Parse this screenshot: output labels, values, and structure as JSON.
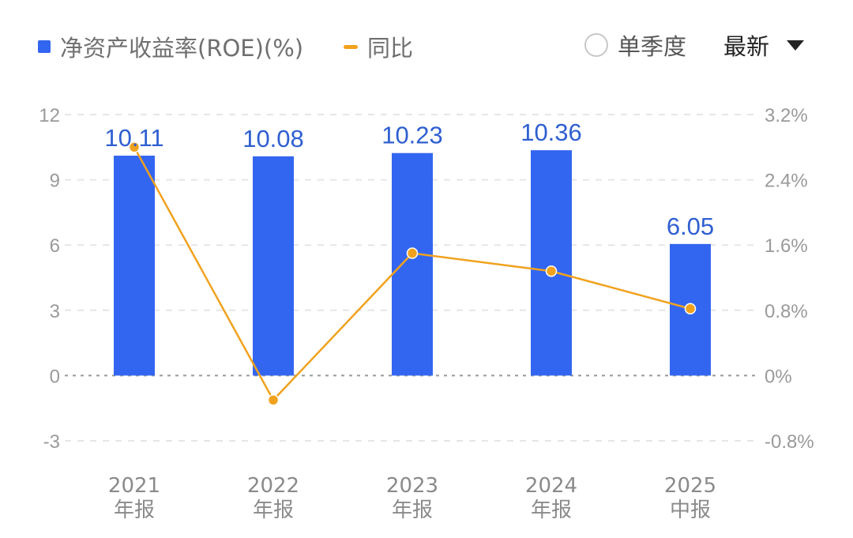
{
  "legend": {
    "roe_label": "净资产收益率(ROE)(%)",
    "yoy_label": "同比"
  },
  "controls": {
    "single_quarter_label": "单季度",
    "single_quarter_checked": false,
    "latest_label": "最新"
  },
  "colors": {
    "bar": "#3366f0",
    "line": "#f0a21e",
    "grid": "#e6e6e6",
    "zero_line": "#999999"
  },
  "chart_data": {
    "type": "bar",
    "categories": [
      [
        "2021",
        "年报"
      ],
      [
        "2022",
        "年报"
      ],
      [
        "2023",
        "年报"
      ],
      [
        "2024",
        "年报"
      ],
      [
        "2025",
        "中报"
      ]
    ],
    "series": [
      {
        "name": "净资产收益率(ROE)(%)",
        "type": "bar",
        "axis": "left",
        "values": [
          10.11,
          10.08,
          10.23,
          10.36,
          6.05
        ],
        "labels": [
          "10.11",
          "10.08",
          "10.23",
          "10.36",
          "6.05"
        ]
      },
      {
        "name": "同比",
        "type": "line",
        "axis": "right",
        "values": [
          2.8,
          -0.3,
          1.5,
          1.28,
          0.82
        ]
      }
    ],
    "y_left": {
      "ticks": [
        12,
        9,
        6,
        3,
        0,
        -3
      ],
      "ylim": [
        -3,
        12
      ]
    },
    "y_right": {
      "ticks": [
        "3.2%",
        "2.4%",
        "1.6%",
        "0.8%",
        "0%",
        "-0.8%"
      ],
      "ylim": [
        -0.8,
        3.2
      ]
    },
    "grid": true,
    "legend_position": "top-left"
  }
}
